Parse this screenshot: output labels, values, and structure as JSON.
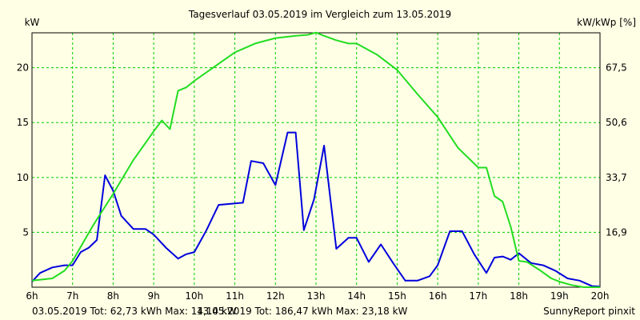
{
  "chart_data": {
    "type": "line",
    "title": "Tagesverlauf 03.05.2019 im Vergleich zum 13.05.2019",
    "ylabel_left": "kW",
    "ylabel_right": "kW/kWp [%]",
    "x_tick_labels": [
      "6h",
      "7h",
      "8h",
      "9h",
      "10h",
      "11h",
      "12h",
      "13h",
      "14h",
      "15h",
      "16h",
      "17h",
      "18h",
      "19h",
      "20h"
    ],
    "xlim": [
      6,
      20
    ],
    "ylim": [
      0,
      23.18
    ],
    "y_ticks_left": [
      5,
      10,
      15,
      20
    ],
    "y_ticks_right": [
      "16,9",
      "33,7",
      "50,6",
      "67,5"
    ],
    "grid": true,
    "series": [
      {
        "color": "#0000dd",
        "x": [
          6.0,
          6.2,
          6.5,
          6.8,
          7.0,
          7.2,
          7.4,
          7.6,
          7.8,
          8.0,
          8.2,
          8.5,
          8.8,
          9.0,
          9.3,
          9.6,
          9.8,
          10.0,
          10.3,
          10.6,
          10.9,
          11.2,
          11.4,
          11.7,
          12.0,
          12.3,
          12.5,
          12.7,
          12.95,
          13.2,
          13.5,
          13.8,
          14.0,
          14.3,
          14.6,
          14.9,
          15.2,
          15.5,
          15.8,
          16.0,
          16.3,
          16.6,
          16.9,
          17.2,
          17.4,
          17.6,
          17.8,
          18.0,
          18.3,
          18.6,
          18.9,
          19.2,
          19.5,
          19.8,
          20.0
        ],
        "y": [
          0.5,
          1.3,
          1.8,
          2.0,
          2.0,
          3.2,
          3.6,
          4.3,
          10.2,
          8.8,
          6.5,
          5.3,
          5.3,
          4.8,
          3.6,
          2.6,
          3.0,
          3.2,
          5.2,
          7.5,
          7.6,
          7.7,
          11.5,
          11.3,
          9.3,
          14.1,
          14.1,
          5.2,
          8.0,
          12.9,
          3.5,
          4.5,
          4.5,
          2.3,
          3.9,
          2.2,
          0.6,
          0.6,
          1.0,
          2.0,
          5.1,
          5.1,
          3.0,
          1.3,
          2.7,
          2.8,
          2.5,
          3.1,
          2.2,
          2.0,
          1.5,
          0.8,
          0.6,
          0.1,
          0.05
        ]
      },
      {
        "color": "#22dd22",
        "x": [
          6.0,
          6.5,
          6.8,
          7.0,
          7.5,
          8.0,
          8.5,
          9.0,
          9.2,
          9.4,
          9.6,
          9.8,
          10.0,
          10.5,
          11.0,
          11.5,
          12.0,
          12.5,
          12.8,
          13.0,
          13.2,
          13.5,
          13.8,
          14.0,
          14.5,
          15.0,
          15.5,
          16.0,
          16.5,
          17.0,
          17.2,
          17.4,
          17.6,
          17.8,
          18.0,
          18.2,
          18.5,
          18.8,
          19.0,
          19.3,
          19.6,
          20.0
        ],
        "y": [
          0.6,
          0.8,
          1.5,
          2.4,
          5.6,
          8.5,
          11.6,
          14.2,
          15.2,
          14.4,
          17.9,
          18.2,
          18.8,
          20.1,
          21.4,
          22.2,
          22.7,
          22.9,
          23.0,
          23.2,
          22.9,
          22.5,
          22.2,
          22.2,
          21.2,
          19.8,
          17.6,
          15.5,
          12.7,
          10.9,
          10.9,
          8.3,
          7.8,
          5.5,
          2.4,
          2.3,
          1.6,
          0.8,
          0.5,
          0.2,
          0.0,
          0.0
        ]
      }
    ]
  },
  "footer": {
    "left_text": "03.05.2019 Tot: 62,73 kWh Max: 14,14 kW",
    "left_color": "#0000dd",
    "mid_text": "13.05.2019 Tot: 186,47 kWh Max: 23,18 kW",
    "mid_color": "#22bb22",
    "right_text": "SunnyReport pinxit"
  }
}
